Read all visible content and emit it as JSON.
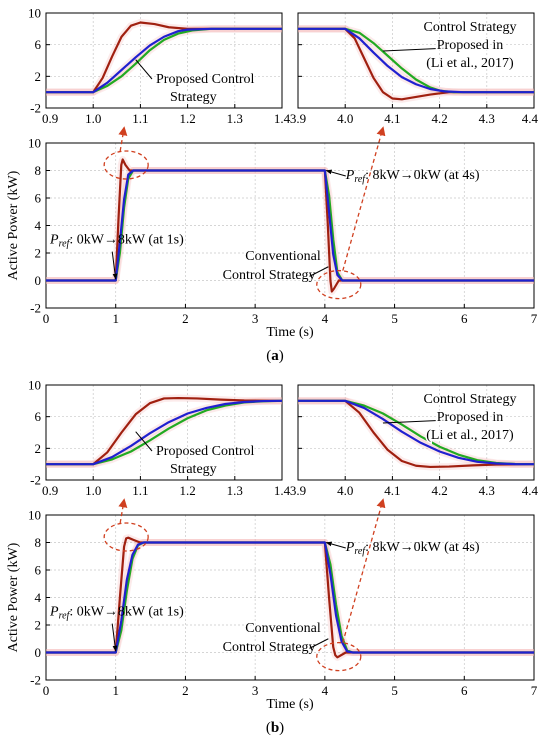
{
  "chart_data": [
    {
      "panel": "a",
      "caption": "(a)",
      "caption_letter": "a",
      "colors": {
        "conventional": "#a02010",
        "li2017": "#22aa22",
        "proposed": "#2020d0"
      },
      "zoom_left": {
        "type": "line",
        "xlim": [
          0.9,
          1.4
        ],
        "ylim": [
          -2,
          10
        ],
        "xticks": [
          "0.9",
          "1.0",
          "1.1",
          "1.2",
          "1.3",
          "1.4"
        ],
        "yticks": [
          "-2",
          "2",
          "6",
          "10"
        ],
        "series": [
          {
            "key": "conventional",
            "x": [
              0.9,
              1.0,
              1.02,
              1.04,
              1.06,
              1.08,
              1.1,
              1.13,
              1.16,
              1.2,
              1.25,
              1.3,
              1.4
            ],
            "y": [
              0,
              0,
              1.8,
              4.5,
              7.0,
              8.4,
              8.8,
              8.6,
              8.2,
              8.0,
              8.0,
              8.0,
              8.0
            ]
          },
          {
            "key": "li2017",
            "x": [
              0.9,
              1.0,
              1.03,
              1.06,
              1.09,
              1.12,
              1.15,
              1.18,
              1.21,
              1.25,
              1.3,
              1.4
            ],
            "y": [
              0,
              0,
              0.8,
              2.0,
              3.6,
              5.3,
              6.6,
              7.4,
              7.8,
              8.0,
              8.0,
              8.0
            ]
          },
          {
            "key": "proposed",
            "x": [
              0.9,
              1.0,
              1.03,
              1.06,
              1.09,
              1.12,
              1.15,
              1.18,
              1.2,
              1.25,
              1.3,
              1.4
            ],
            "y": [
              0,
              0,
              1.2,
              2.8,
              4.4,
              5.9,
              7.0,
              7.7,
              7.9,
              8.0,
              8.0,
              8.0
            ]
          }
        ]
      },
      "zoom_right": {
        "type": "line",
        "xlim": [
          3.9,
          4.4
        ],
        "ylim": [
          -2,
          10
        ],
        "xticks": [
          "3.9",
          "4.0",
          "4.1",
          "4.2",
          "4.3",
          "4.4"
        ],
        "yticks": [
          "-2",
          "2",
          "6",
          "10"
        ],
        "series": [
          {
            "key": "conventional",
            "x": [
              3.9,
              4.0,
              4.02,
              4.04,
              4.06,
              4.08,
              4.1,
              4.12,
              4.15,
              4.18,
              4.22,
              4.3,
              4.4
            ],
            "y": [
              8,
              8,
              6.8,
              4.3,
              1.8,
              0.0,
              -0.8,
              -0.9,
              -0.6,
              -0.3,
              0,
              0,
              0
            ]
          },
          {
            "key": "li2017",
            "x": [
              3.9,
              4.0,
              4.03,
              4.06,
              4.09,
              4.12,
              4.15,
              4.18,
              4.2,
              4.23,
              4.3,
              4.4
            ],
            "y": [
              8,
              8,
              7.5,
              6.2,
              4.6,
              3.0,
              1.6,
              0.6,
              0.2,
              0,
              0,
              0
            ]
          },
          {
            "key": "proposed",
            "x": [
              3.9,
              4.0,
              4.03,
              4.06,
              4.09,
              4.12,
              4.15,
              4.18,
              4.21,
              4.25,
              4.3,
              4.4
            ],
            "y": [
              8,
              8,
              6.8,
              5.0,
              3.3,
              1.9,
              1.0,
              0.4,
              0.1,
              0,
              0,
              0
            ]
          }
        ]
      },
      "main": {
        "type": "line",
        "xlim": [
          0,
          7
        ],
        "ylim": [
          -2,
          10
        ],
        "xticks": [
          "0",
          "1",
          "2",
          "3",
          "4",
          "5",
          "6",
          "7"
        ],
        "yticks": [
          "-2",
          "0",
          "2",
          "4",
          "6",
          "8",
          "10"
        ],
        "xlabel": "Time (s)",
        "ylabel": "Active Power (kW)",
        "series": [
          {
            "key": "conventional",
            "x": [
              0,
              1.0,
              1.04,
              1.08,
              1.1,
              1.14,
              1.2,
              4.0,
              4.04,
              4.08,
              4.1,
              4.13,
              4.2,
              7
            ],
            "y": [
              0,
              0,
              4.5,
              8.4,
              8.8,
              8.4,
              8.0,
              8.0,
              4.3,
              0.0,
              -0.8,
              -0.6,
              0,
              0
            ]
          },
          {
            "key": "li2017",
            "x": [
              0,
              1.0,
              1.06,
              1.12,
              1.18,
              1.25,
              4.0,
              4.06,
              4.12,
              4.18,
              4.25,
              7
            ],
            "y": [
              0,
              0,
              2.0,
              5.3,
              7.4,
              8.0,
              8.0,
              6.2,
              3.0,
              0.6,
              0,
              0
            ]
          },
          {
            "key": "proposed",
            "x": [
              0,
              1.0,
              1.06,
              1.12,
              1.18,
              1.25,
              4.0,
              4.06,
              4.12,
              4.18,
              4.25,
              7
            ],
            "y": [
              0,
              0,
              2.8,
              5.9,
              7.7,
              8.0,
              8.0,
              5.0,
              1.9,
              0.4,
              0,
              0
            ]
          }
        ]
      },
      "annotations": {
        "proposed_1": "Proposed Control",
        "proposed_2": "Strategy",
        "li_1": "Control Strategy",
        "li_2": "Proposed in",
        "li_3": "(Li et al., 2017)",
        "pref_up_sym": "P",
        "pref_up_sub": "ref",
        "pref_up_text": ": 0kW→8kW (at 1s)",
        "pref_down_sym": "P",
        "pref_down_sub": "ref",
        "pref_down_text": ": 8kW→0kW (at 4s)",
        "conv_1": "Conventional",
        "conv_2": "Control Strategy"
      }
    },
    {
      "panel": "b",
      "caption": "(b)",
      "caption_letter": "b",
      "colors": {
        "conventional": "#a02010",
        "li2017": "#22aa22",
        "proposed": "#2020d0"
      },
      "zoom_left": {
        "type": "line",
        "xlim": [
          0.9,
          1.4
        ],
        "ylim": [
          -2,
          10
        ],
        "xticks": [
          "0.9",
          "1.0",
          "1.1",
          "1.2",
          "1.3",
          "1.4"
        ],
        "yticks": [
          "-2",
          "2",
          "6",
          "10"
        ],
        "series": [
          {
            "key": "conventional",
            "x": [
              0.9,
              1.0,
              1.03,
              1.06,
              1.09,
              1.12,
              1.15,
              1.18,
              1.22,
              1.27,
              1.32,
              1.4
            ],
            "y": [
              0,
              0,
              1.5,
              4.0,
              6.3,
              7.7,
              8.3,
              8.35,
              8.3,
              8.15,
              8.05,
              8.0
            ]
          },
          {
            "key": "li2017",
            "x": [
              0.9,
              1.0,
              1.04,
              1.08,
              1.12,
              1.16,
              1.2,
              1.24,
              1.28,
              1.32,
              1.36,
              1.4
            ],
            "y": [
              0,
              0,
              0.6,
              1.6,
              3.0,
              4.5,
              5.8,
              6.8,
              7.4,
              7.8,
              7.95,
              8.0
            ]
          },
          {
            "key": "proposed",
            "x": [
              0.9,
              1.0,
              1.04,
              1.08,
              1.12,
              1.16,
              1.2,
              1.24,
              1.28,
              1.32,
              1.36,
              1.4
            ],
            "y": [
              0,
              0,
              0.9,
              2.3,
              3.9,
              5.3,
              6.4,
              7.1,
              7.6,
              7.85,
              7.97,
              8.0
            ]
          }
        ]
      },
      "zoom_right": {
        "type": "line",
        "xlim": [
          3.9,
          4.4
        ],
        "ylim": [
          -2,
          10
        ],
        "xticks": [
          "3.9",
          "4.0",
          "4.1",
          "4.2",
          "4.3",
          "4.4"
        ],
        "yticks": [
          "-2",
          "2",
          "6",
          "10"
        ],
        "series": [
          {
            "key": "conventional",
            "x": [
              3.9,
              4.0,
              4.03,
              4.06,
              4.09,
              4.12,
              4.15,
              4.18,
              4.22,
              4.27,
              4.32,
              4.4
            ],
            "y": [
              8,
              8,
              6.5,
              4.0,
              1.8,
              0.4,
              -0.2,
              -0.35,
              -0.3,
              -0.15,
              -0.05,
              0
            ]
          },
          {
            "key": "li2017",
            "x": [
              3.9,
              4.0,
              4.04,
              4.08,
              4.12,
              4.16,
              4.2,
              4.24,
              4.28,
              4.32,
              4.36,
              4.4
            ],
            "y": [
              8,
              8,
              7.4,
              6.4,
              5.0,
              3.5,
              2.2,
              1.2,
              0.5,
              0.15,
              0.02,
              0
            ]
          },
          {
            "key": "proposed",
            "x": [
              3.9,
              4.0,
              4.04,
              4.08,
              4.12,
              4.16,
              4.2,
              4.24,
              4.28,
              4.32,
              4.36,
              4.4
            ],
            "y": [
              8,
              8,
              7.1,
              5.7,
              4.1,
              2.7,
              1.6,
              0.8,
              0.3,
              0.08,
              0.01,
              0
            ]
          }
        ]
      },
      "main": {
        "type": "line",
        "xlim": [
          0,
          7
        ],
        "ylim": [
          -2,
          10
        ],
        "xticks": [
          "0",
          "1",
          "2",
          "3",
          "4",
          "5",
          "6",
          "7"
        ],
        "yticks": [
          "-2",
          "0",
          "2",
          "4",
          "6",
          "8",
          "10"
        ],
        "xlabel": "Time (s)",
        "ylabel": "Active Power (kW)",
        "series": [
          {
            "key": "conventional",
            "x": [
              0,
              1.0,
              1.06,
              1.12,
              1.15,
              1.18,
              1.25,
              1.35,
              4.0,
              4.06,
              4.12,
              4.15,
              4.18,
              4.3,
              7
            ],
            "y": [
              0,
              0,
              4.0,
              7.7,
              8.3,
              8.35,
              8.2,
              8.0,
              8.0,
              4.0,
              0.4,
              -0.2,
              -0.35,
              0,
              0
            ]
          },
          {
            "key": "li2017",
            "x": [
              0,
              1.0,
              1.08,
              1.16,
              1.24,
              1.32,
              1.4,
              4.0,
              4.08,
              4.16,
              4.24,
              4.32,
              4.4,
              7
            ],
            "y": [
              0,
              0,
              1.6,
              4.5,
              6.8,
              7.8,
              8.0,
              8.0,
              6.4,
              3.5,
              1.2,
              0.15,
              0,
              0
            ]
          },
          {
            "key": "proposed",
            "x": [
              0,
              1.0,
              1.08,
              1.16,
              1.24,
              1.32,
              1.4,
              4.0,
              4.08,
              4.16,
              4.24,
              4.32,
              4.4,
              7
            ],
            "y": [
              0,
              0,
              2.3,
              5.3,
              7.1,
              7.85,
              8.0,
              8.0,
              5.7,
              2.7,
              0.8,
              0.08,
              0,
              0
            ]
          }
        ]
      },
      "annotations": {
        "proposed_1": "Proposed Control",
        "proposed_2": "Strategy",
        "li_1": "Control Strategy",
        "li_2": "Proposed in",
        "li_3": "(Li et al., 2017)",
        "pref_up_sym": "P",
        "pref_up_sub": "ref",
        "pref_up_text": ": 0kW→8kW (at 1s)",
        "pref_down_sym": "P",
        "pref_down_sub": "ref",
        "pref_down_text": ": 8kW→0kW (at 4s)",
        "conv_1": "Conventional",
        "conv_2": "Control Strategy"
      }
    }
  ]
}
